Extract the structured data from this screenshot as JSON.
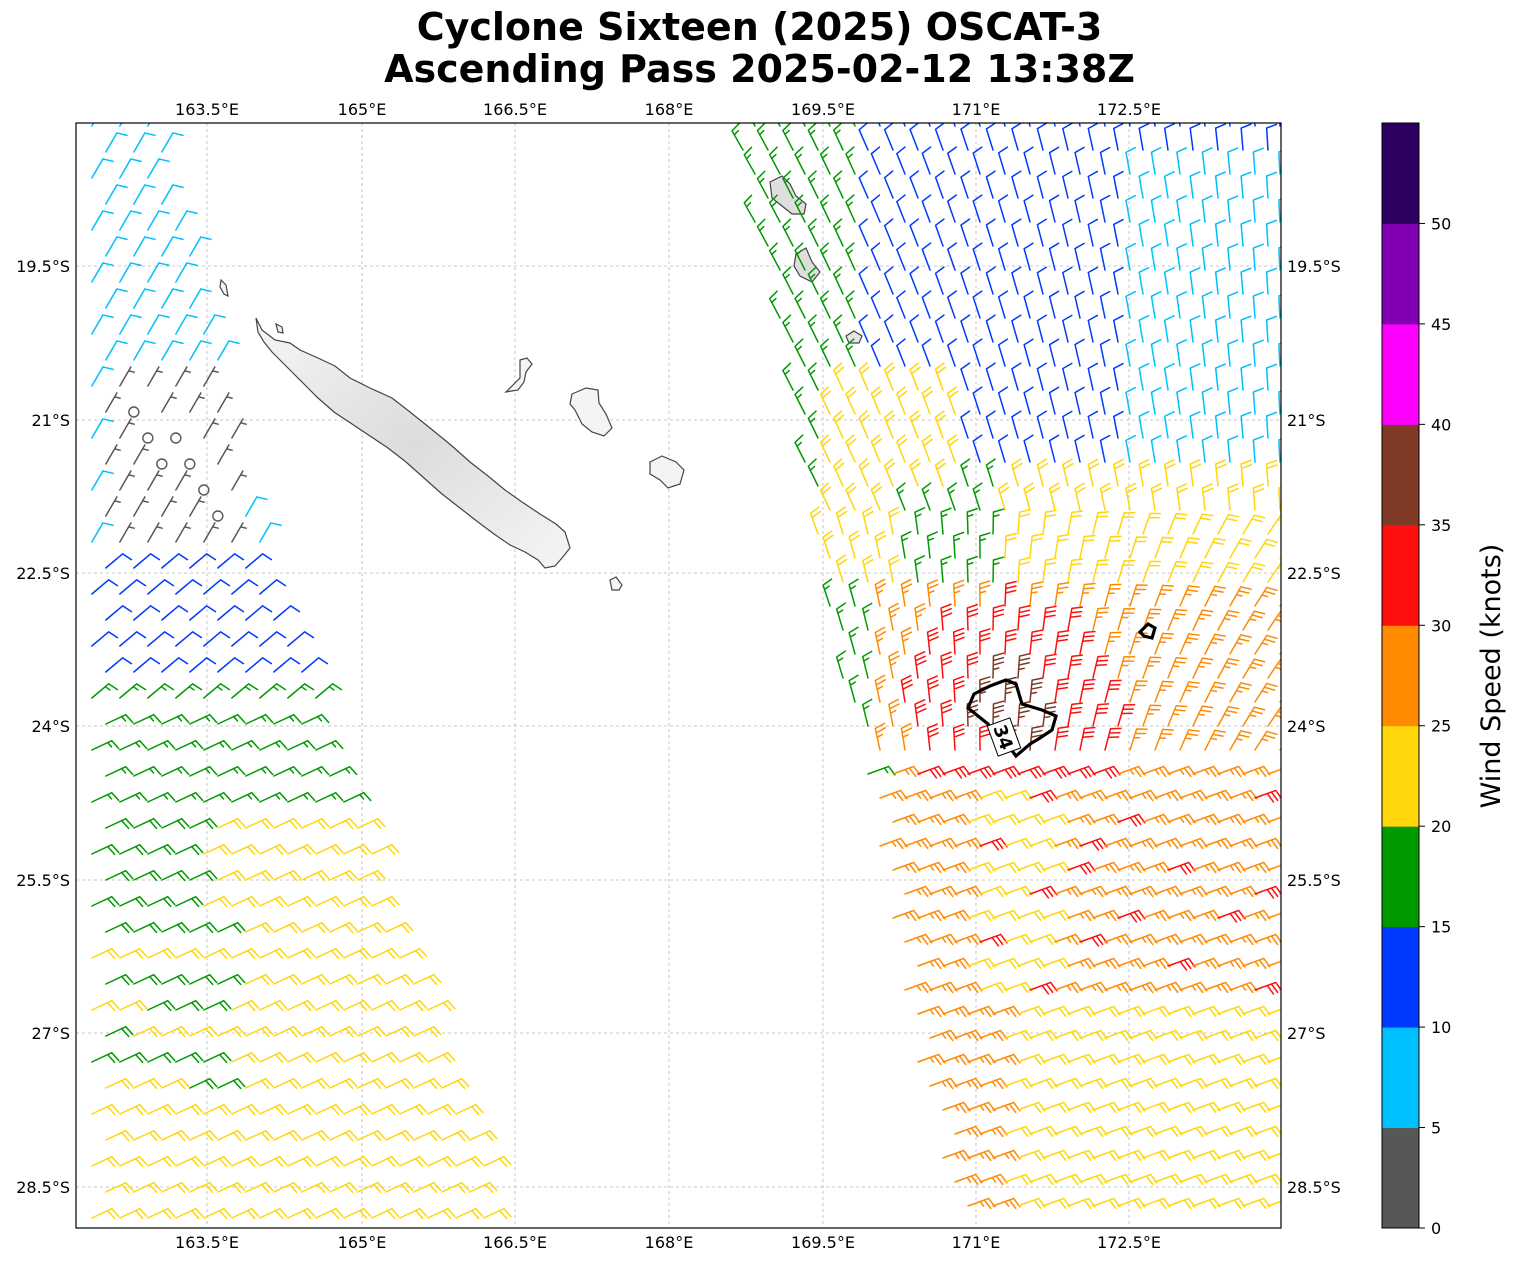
{
  "title_line1": "Cyclone Sixteen (2025) OSCAT-3",
  "title_line2": "Ascending Pass 2025-02-12 13:38Z",
  "lon_ticks": [
    "163.5°E",
    "165°E",
    "166.5°E",
    "168°E",
    "169.5°E",
    "171°E",
    "172.5°E"
  ],
  "lat_ticks": [
    "19.5°S",
    "21°S",
    "22.5°S",
    "24°S",
    "25.5°S",
    "27°S",
    "28.5°S"
  ],
  "contour_label": "34",
  "colorbar": {
    "label": "Wind Speed (knots)",
    "tick_labels": [
      "0",
      "5",
      "10",
      "15",
      "20",
      "25",
      "30",
      "35",
      "40",
      "45",
      "50"
    ],
    "bins": [
      {
        "min": 0,
        "max": 5,
        "color": "#575757"
      },
      {
        "min": 5,
        "max": 10,
        "color": "#00bfff"
      },
      {
        "min": 10,
        "max": 15,
        "color": "#0039ff"
      },
      {
        "min": 15,
        "max": 20,
        "color": "#009a00"
      },
      {
        "min": 20,
        "max": 25,
        "color": "#ffd60a"
      },
      {
        "min": 25,
        "max": 30,
        "color": "#ff8a00"
      },
      {
        "min": 30,
        "max": 35,
        "color": "#ff0e0e"
      },
      {
        "min": 35,
        "max": 40,
        "color": "#7e3a24"
      },
      {
        "min": 40,
        "max": 45,
        "color": "#ff00ff"
      },
      {
        "min": 45,
        "max": 50,
        "color": "#8000b2"
      },
      {
        "min": 50,
        "max": 55,
        "color": "#2b0060"
      }
    ]
  },
  "map": {
    "lon_range": [
      162.1,
      173.85
    ],
    "lat_range": [
      -18.1,
      -28.9
    ],
    "gridlines": true,
    "contour_value_knots": 34
  }
}
